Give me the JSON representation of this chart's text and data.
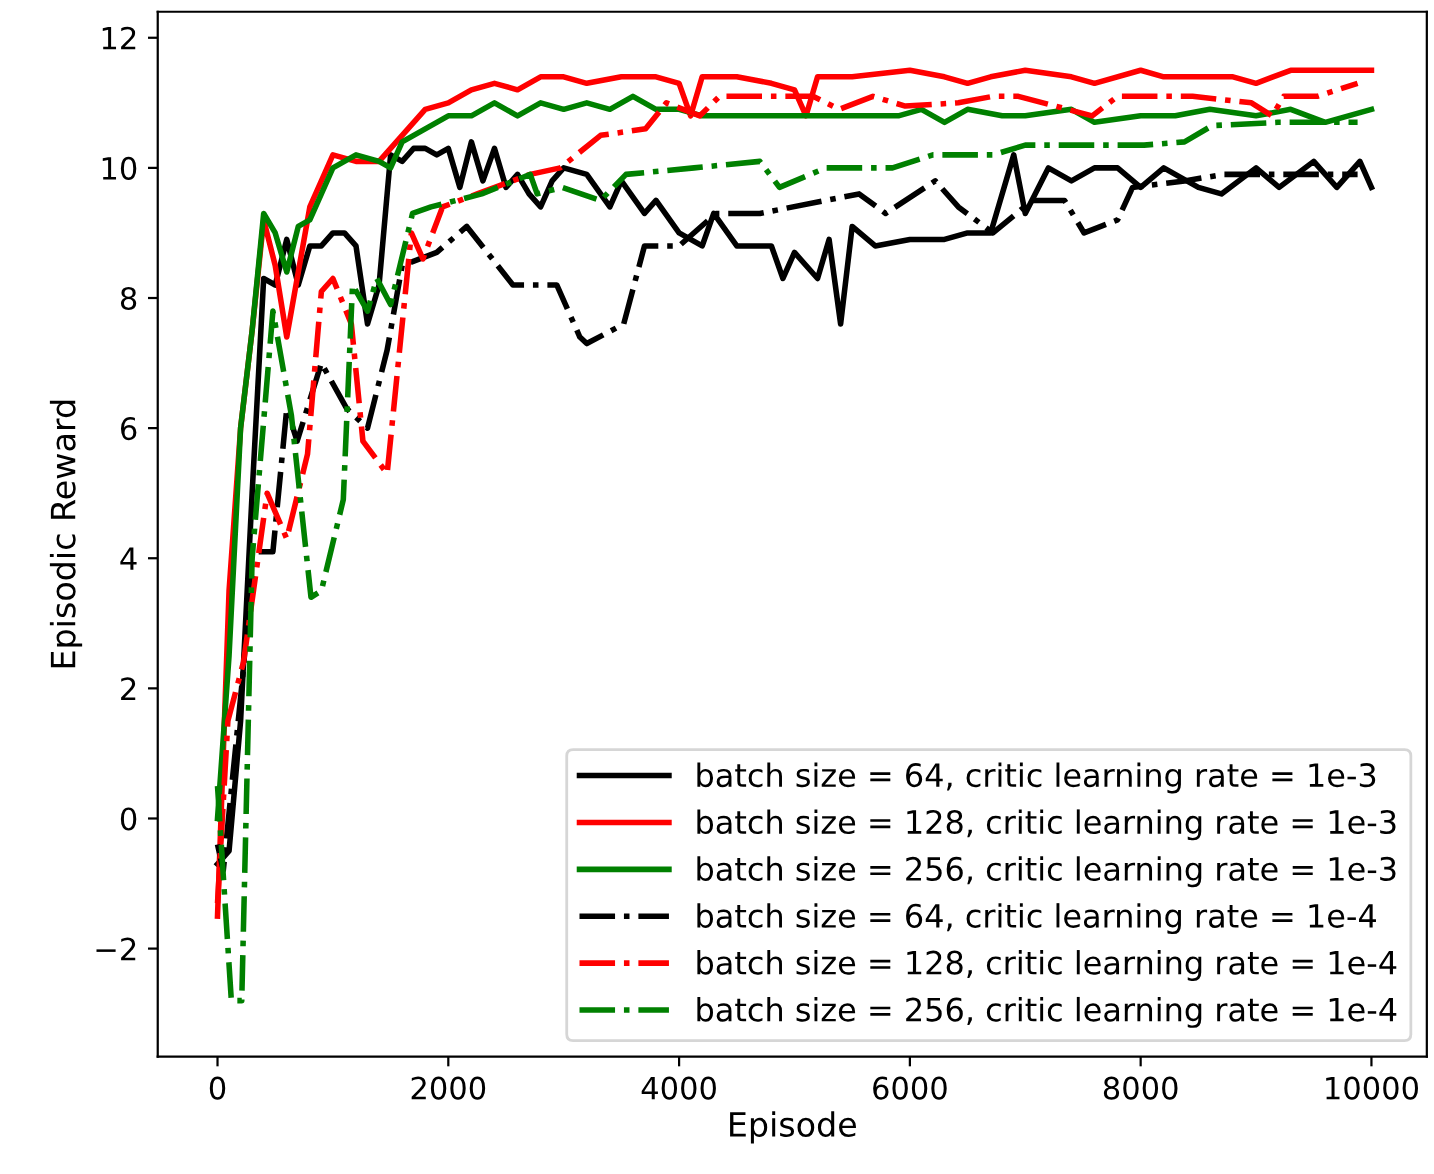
{
  "chart_data": {
    "type": "line",
    "xlabel": "Episode",
    "ylabel": "Episodic Reward",
    "xlim": [
      -518,
      10480
    ],
    "ylim": [
      -3.66,
      12.4
    ],
    "xticks": [
      0,
      2000,
      4000,
      6000,
      8000,
      10000
    ],
    "yticks": [
      {
        "value": -2,
        "label": "−2"
      },
      0,
      2,
      4,
      6,
      8,
      10,
      12
    ],
    "grid": false,
    "legend": "bottom right",
    "series": [
      {
        "name": "batch size = 64, critic learning rate = 1e-3",
        "color": "#000000",
        "line_style": "solid",
        "x": [
          0,
          100,
          200,
          300,
          400,
          500,
          600,
          700,
          800,
          900,
          1000,
          1100,
          1200,
          1300,
          1400,
          1500,
          1600,
          1700,
          1800,
          1900,
          2000,
          2100,
          2200,
          2300,
          2400,
          2500,
          2600,
          2700,
          2800,
          2900,
          3000,
          3200,
          3400,
          3500,
          3700,
          3800,
          4000,
          4200,
          4300,
          4500,
          4800,
          4900,
          5000,
          5200,
          5300,
          5400,
          5500,
          5700,
          6000,
          6300,
          6500,
          6700,
          6900,
          7000,
          7200,
          7400,
          7600,
          7800,
          8000,
          8200,
          8500,
          8700,
          9000,
          9200,
          9500,
          9700,
          9900,
          10000
        ],
        "values": [
          -0.7,
          -0.5,
          1.5,
          5,
          8.3,
          8.2,
          8.9,
          8.2,
          8.8,
          8.8,
          9.0,
          9.0,
          8.8,
          7.6,
          8.2,
          10.2,
          10.1,
          10.3,
          10.3,
          10.2,
          10.3,
          9.7,
          10.4,
          9.8,
          10.3,
          9.7,
          9.9,
          9.6,
          9.4,
          9.8,
          10.0,
          9.9,
          9.4,
          9.8,
          9.3,
          9.5,
          9.0,
          8.8,
          9.3,
          8.8,
          8.8,
          8.3,
          8.7,
          8.3,
          8.9,
          7.6,
          9.1,
          8.8,
          8.9,
          8.9,
          9.0,
          9.0,
          10.2,
          9.3,
          10.0,
          9.8,
          10.0,
          10.0,
          9.7,
          10.0,
          9.7,
          9.6,
          10.0,
          9.7,
          10.1,
          9.7,
          10.1,
          9.7
        ]
      },
      {
        "name": "batch size = 128, critic learning rate = 1e-3",
        "color": "#ff0000",
        "line_style": "solid",
        "x": [
          0,
          100,
          200,
          300,
          400,
          500,
          600,
          700,
          800,
          1000,
          1200,
          1400,
          1600,
          1800,
          2000,
          2200,
          2400,
          2600,
          2800,
          3000,
          3200,
          3500,
          3800,
          4000,
          4100,
          4200,
          4500,
          4800,
          5000,
          5100,
          5200,
          5500,
          6000,
          6300,
          6500,
          6700,
          7000,
          7400,
          7600,
          8000,
          8200,
          8500,
          8800,
          9000,
          9300,
          9700,
          10000
        ],
        "values": [
          -1.5,
          3.5,
          6,
          7.5,
          9.2,
          8.5,
          7.4,
          8.4,
          9.4,
          10.2,
          10.1,
          10.1,
          10.5,
          10.9,
          11.0,
          11.2,
          11.3,
          11.2,
          11.4,
          11.4,
          11.3,
          11.4,
          11.4,
          11.3,
          10.8,
          11.4,
          11.4,
          11.3,
          11.2,
          10.8,
          11.4,
          11.4,
          11.5,
          11.4,
          11.3,
          11.4,
          11.5,
          11.4,
          11.3,
          11.5,
          11.4,
          11.4,
          11.4,
          11.3,
          11.5,
          11.5,
          11.5
        ]
      },
      {
        "name": "batch size = 256, critic learning rate = 1e-3",
        "color": "#008000",
        "line_style": "solid",
        "x": [
          0,
          100,
          200,
          300,
          400,
          500,
          600,
          700,
          800,
          900,
          1000,
          1200,
          1400,
          1500,
          1600,
          1800,
          2000,
          2200,
          2400,
          2600,
          2800,
          3000,
          3200,
          3400,
          3600,
          3800,
          4000,
          4200,
          4500,
          5000,
          5500,
          5900,
          6100,
          6300,
          6500,
          6800,
          7000,
          7400,
          7600,
          8000,
          8300,
          8600,
          9000,
          9300,
          9600,
          10000
        ],
        "values": [
          0.0,
          2.5,
          6,
          7.5,
          9.3,
          9.0,
          8.4,
          9.1,
          9.2,
          9.6,
          10.0,
          10.2,
          10.1,
          10.0,
          10.4,
          10.6,
          10.8,
          10.8,
          11.0,
          10.8,
          11.0,
          10.9,
          11.0,
          10.9,
          11.1,
          10.9,
          10.9,
          10.8,
          10.8,
          10.8,
          10.8,
          10.8,
          10.9,
          10.7,
          10.9,
          10.8,
          10.8,
          10.9,
          10.7,
          10.8,
          10.8,
          10.9,
          10.8,
          10.9,
          10.7,
          10.9
        ]
      },
      {
        "name": "batch size = 64, critic learning rate = 1e-4",
        "color": "#000000",
        "line_style": "dashdot",
        "x": [
          0,
          50,
          225,
          300,
          480,
          600,
          690,
          900,
          1120,
          1300,
          1470,
          1600,
          1900,
          2160,
          2560,
          2940,
          3140,
          3200,
          3520,
          3700,
          4000,
          4320,
          4700,
          5270,
          5560,
          5790,
          6220,
          6420,
          6720,
          7060,
          7340,
          7510,
          7800,
          7930,
          8380,
          8720,
          9010,
          9410,
          9880
        ],
        "values": [
          -0.4,
          -0.8,
          2.3,
          4.1,
          4.1,
          6.3,
          5.8,
          7.0,
          6.3,
          6.0,
          7.2,
          8.5,
          8.7,
          9.1,
          8.2,
          8.2,
          7.4,
          7.3,
          7.6,
          8.8,
          8.8,
          9.3,
          9.3,
          9.5,
          9.6,
          9.3,
          9.8,
          9.4,
          9.0,
          9.5,
          9.5,
          9.0,
          9.2,
          9.7,
          9.8,
          9.9,
          9.9,
          9.9,
          9.9
        ]
      },
      {
        "name": "batch size = 128, critic learning rate = 1e-4",
        "color": "#ff0000",
        "line_style": "dashdot",
        "x": [
          0,
          90,
          225,
          430,
          600,
          780,
          900,
          1000,
          1160,
          1260,
          1470,
          1680,
          1780,
          1950,
          2250,
          2710,
          2970,
          3320,
          3710,
          3890,
          4180,
          4350,
          5160,
          5390,
          5680,
          5960,
          6420,
          6720,
          6940,
          7580,
          7800,
          8450,
          8960,
          9140,
          9240,
          9530,
          9880
        ],
        "values": [
          -1.3,
          1.5,
          2.4,
          5.0,
          4.3,
          5.6,
          8.1,
          8.3,
          7.6,
          5.8,
          5.3,
          9.0,
          8.6,
          9.4,
          9.6,
          9.9,
          10.0,
          10.5,
          10.6,
          11.0,
          10.8,
          11.1,
          11.1,
          10.9,
          11.1,
          10.95,
          11.0,
          11.1,
          11.1,
          10.8,
          11.1,
          11.1,
          11.0,
          10.8,
          11.1,
          11.1,
          11.3
        ]
      },
      {
        "name": "batch size = 256, critic learning rate = 1e-4",
        "color": "#008000",
        "line_style": "dashdot",
        "x": [
          0,
          120,
          210,
          300,
          480,
          640,
          810,
          900,
          1090,
          1170,
          1300,
          1380,
          1500,
          1690,
          1850,
          2290,
          2710,
          2770,
          2990,
          3320,
          3540,
          4130,
          4700,
          4870,
          5270,
          5850,
          6200,
          6720,
          7000,
          8030,
          8380,
          8620,
          9190,
          9880
        ],
        "values": [
          0.5,
          -2.8,
          -2.8,
          4.0,
          7.8,
          6.2,
          3.4,
          3.5,
          4.9,
          8.2,
          7.8,
          8.3,
          7.9,
          9.3,
          9.4,
          9.6,
          9.9,
          9.6,
          9.7,
          9.5,
          9.9,
          10.0,
          10.1,
          9.7,
          10.0,
          10.0,
          10.2,
          10.2,
          10.35,
          10.35,
          10.4,
          10.65,
          10.7,
          10.7
        ]
      }
    ]
  }
}
